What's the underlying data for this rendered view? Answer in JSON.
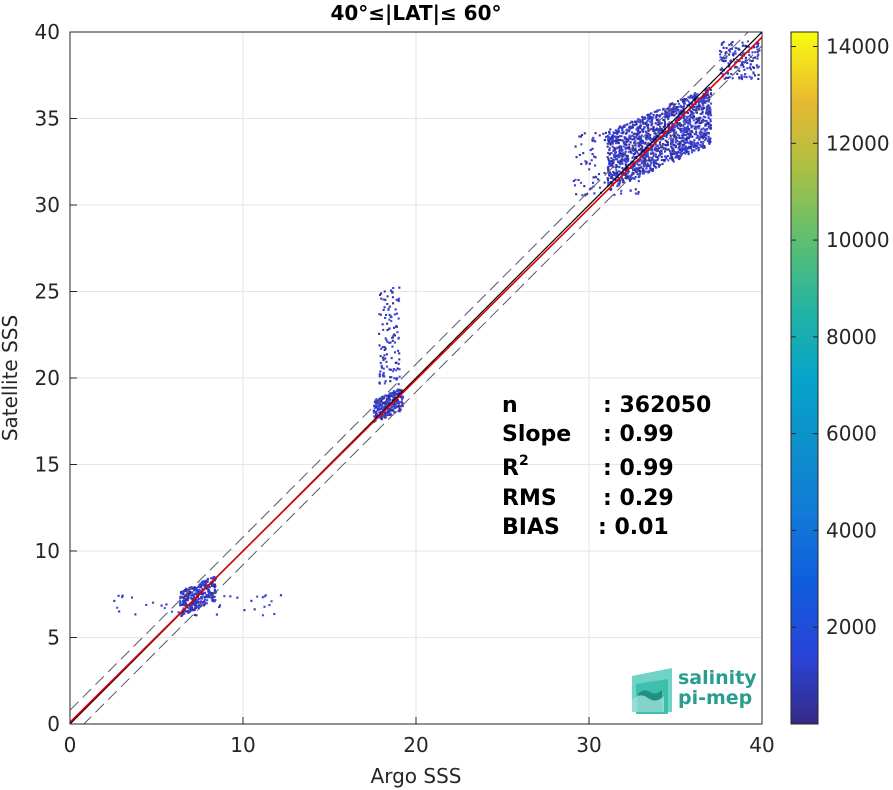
{
  "chart_data": {
    "type": "heatmap",
    "title": "40°≤|LAT|≤ 60°",
    "xlabel": "Argo SSS",
    "ylabel": "Satellite SSS",
    "xlim": [
      0,
      40
    ],
    "ylim": [
      0,
      40
    ],
    "xticks": [
      "0",
      "10",
      "20",
      "30",
      "40"
    ],
    "yticks": [
      "0",
      "5",
      "10",
      "15",
      "20",
      "25",
      "30",
      "35",
      "40"
    ],
    "grid": true,
    "reference_lines": {
      "identity": {
        "slope": 1,
        "intercept": 0,
        "color": "#000000"
      },
      "fit": {
        "slope": 0.99,
        "intercept": 0.1,
        "color": "#e00000"
      },
      "dashed_offsets": [
        0.8,
        -0.8
      ]
    },
    "density_clusters": [
      {
        "x_range": [
          6.3,
          8.4
        ],
        "y_range": [
          6.0,
          8.7
        ],
        "count": 320
      },
      {
        "x_range": [
          2.5,
          12.2
        ],
        "y_range": [
          6.2,
          7.4
        ],
        "count": 40
      },
      {
        "x_range": [
          17.5,
          19.2
        ],
        "y_range": [
          17.2,
          19.6
        ],
        "count": 260
      },
      {
        "x_range": [
          17.8,
          19.0
        ],
        "y_range": [
          19.5,
          25.3
        ],
        "count": 120
      },
      {
        "x_range": [
          31.0,
          37.0
        ],
        "y_range": [
          30.5,
          36.7
        ],
        "count": 1500
      },
      {
        "x_range": [
          29.0,
          33.0
        ],
        "y_range": [
          30.5,
          34.5
        ],
        "count": 120
      },
      {
        "x_range": [
          37.5,
          39.8
        ],
        "y_range": [
          37.2,
          39.4
        ],
        "count": 150
      }
    ],
    "stats": [
      {
        "label": "n",
        "value": ": 362050"
      },
      {
        "label": "Slope",
        "value": ": 0.99"
      },
      {
        "label": "R",
        "sup": "2",
        "value": ": 0.99"
      },
      {
        "label": "RMS",
        "value": ": 0.29"
      },
      {
        "label": "BIAS",
        "value": ": 0.01"
      }
    ],
    "colorbar": {
      "min": 0,
      "max": 14300,
      "ticks": [
        "2000",
        "4000",
        "6000",
        "8000",
        "10000",
        "12000",
        "14000"
      ],
      "colormap": "parula"
    }
  },
  "logo": {
    "line1": "salinity",
    "line2": "pi-mep"
  }
}
